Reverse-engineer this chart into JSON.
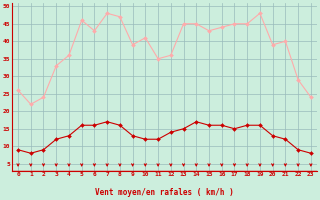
{
  "x": [
    0,
    1,
    2,
    3,
    4,
    5,
    6,
    7,
    8,
    9,
    10,
    11,
    12,
    13,
    14,
    15,
    16,
    17,
    18,
    19,
    20,
    21,
    22,
    23
  ],
  "wind_avg": [
    9,
    8,
    9,
    12,
    13,
    16,
    16,
    17,
    16,
    13,
    12,
    12,
    14,
    15,
    17,
    16,
    16,
    15,
    16,
    16,
    13,
    12,
    9,
    8
  ],
  "wind_gust": [
    26,
    22,
    24,
    33,
    36,
    46,
    43,
    48,
    47,
    39,
    41,
    35,
    36,
    45,
    45,
    43,
    44,
    45,
    45,
    48,
    39,
    40,
    29,
    24
  ],
  "avg_color": "#cc0000",
  "gust_color": "#ffaaaa",
  "bg_color": "#cceedd",
  "grid_color": "#99bbbb",
  "axis_color": "#cc0000",
  "ylabel_ticks": [
    5,
    10,
    15,
    20,
    25,
    30,
    35,
    40,
    45,
    50
  ],
  "ymin": 3,
  "ymax": 51,
  "xlabel": "Vent moyen/en rafales ( km/h )",
  "arrow_color": "#cc0000"
}
